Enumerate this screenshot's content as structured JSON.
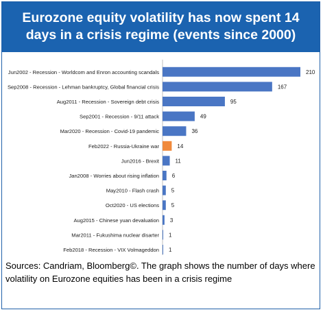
{
  "header": {
    "title_line1": "Eurozone equity volatility has now spent 14",
    "title_line2": "days in a crisis regime (events since 2000)"
  },
  "footer": {
    "source_text": "Sources: Candriam, Bloomberg©. The graph shows the number of days where volatility on Eurozone equities has been in a crisis regime"
  },
  "colors": {
    "header_bg": "#1b63b0",
    "bar_default": "#4a76c4",
    "bar_highlight": "#f08a3c"
  },
  "chart_data": {
    "type": "bar",
    "orientation": "horizontal",
    "title": "",
    "xlabel": "",
    "ylabel": "",
    "xlim": [
      0,
      210
    ],
    "grid": false,
    "legend": "none",
    "categories": [
      "Jun2002 - Recession - Worldcom and Enron accounting scandals",
      "Sep2008 - Recession - Lehman bankruptcy, Global financial crisis",
      "Aug2011 - Recession - Sovereign debt crisis",
      "Sep2001 - Recession - 9/11 attack",
      "Mar2020 - Recession - Covid-19 pandemic",
      "Feb2022 - Russia-Ukraine war",
      "Jun2016 - Brexit",
      "Jan2008 - Worries about rising inflation",
      "May2010 - Flash crash",
      "Oct2020 - US elections",
      "Aug2015 - Chinese yuan devaluation",
      "Mar2011 - Fukushima nuclear disarter",
      "Feb2018 - Recession - VIX Volmageddon"
    ],
    "values": [
      210,
      167,
      95,
      49,
      36,
      14,
      11,
      6,
      5,
      5,
      3,
      1,
      1
    ],
    "highlight_category": "Feb2022 - Russia-Ukraine war",
    "data_labels": [
      "210",
      "167",
      "95",
      "49",
      "36",
      "14",
      "11",
      "6",
      "5",
      "5",
      "3",
      "1",
      "1"
    ]
  }
}
